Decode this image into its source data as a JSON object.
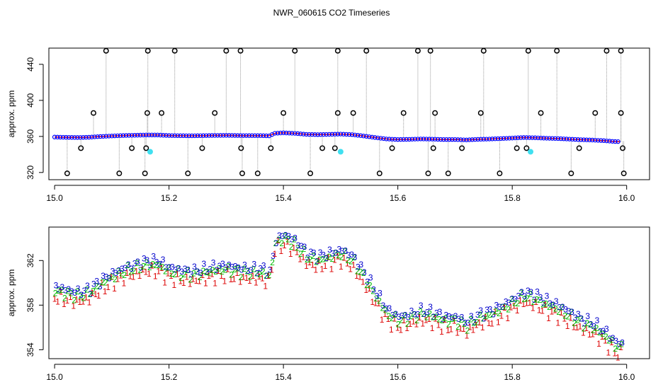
{
  "title": "NWR_060615  CO2 Timeseries",
  "colors": {
    "primary_line": "#ff0000",
    "primary_points": "#0000ff",
    "outlier": "#000000",
    "flag_cyan": "#40e0f0",
    "connector": "#999999",
    "code1": "#dd0000",
    "code2": "#00bb00",
    "code3": "#0000cc"
  },
  "chart_data": [
    {
      "type": "scatter",
      "name": "overview",
      "ylabel": "approx. ppm",
      "xlabel": "",
      "xlim": [
        14.99,
        16.04
      ],
      "ylim": [
        312,
        458
      ],
      "xticks": [
        15.0,
        15.2,
        15.4,
        15.6,
        15.8,
        16.0
      ],
      "xtick_labels": [
        "15.0",
        "15.2",
        "15.4",
        "15.6",
        "15.8",
        "16.0"
      ],
      "yticks": [
        320,
        360,
        400,
        440
      ],
      "ytick_labels": [
        "320",
        "360",
        "400",
        "440"
      ],
      "outliers_x": [
        15.09,
        15.163,
        15.21,
        15.3,
        15.325,
        15.42,
        15.495,
        15.545,
        15.635,
        15.657,
        15.75,
        15.828,
        15.878,
        15.965,
        15.99
      ],
      "outliers_y": [
        455,
        455,
        455,
        455,
        455,
        455,
        455,
        455,
        455,
        455,
        455,
        455,
        455,
        455,
        455
      ],
      "mid_outliers_x": [
        15.068,
        15.162,
        15.187,
        15.28,
        15.4,
        15.495,
        15.522,
        15.61,
        15.665,
        15.745,
        15.85,
        15.945,
        15.99
      ],
      "mid_outliers_y": [
        386,
        386,
        386,
        386,
        386,
        386,
        386,
        386,
        386,
        386,
        386,
        386,
        386
      ],
      "low_outliers_x": [
        15.022,
        15.113,
        15.158,
        15.233,
        15.328,
        15.355,
        15.447,
        15.568,
        15.653,
        15.688,
        15.778,
        15.903,
        15.995
      ],
      "low_outliers_y": [
        319,
        319,
        319,
        319,
        319,
        319,
        319,
        319,
        319,
        319,
        319,
        319,
        319
      ],
      "near_outliers_x": [
        15.046,
        15.135,
        15.16,
        15.258,
        15.326,
        15.378,
        15.468,
        15.49,
        15.59,
        15.662,
        15.712,
        15.808,
        15.825,
        15.917,
        15.993
      ],
      "near_outliers_y": [
        347,
        347,
        347,
        347,
        347,
        347,
        347,
        347,
        347,
        347,
        347,
        347,
        347,
        347,
        347
      ],
      "flag_x": [
        15.167,
        15.5,
        15.832
      ],
      "flag_y": [
        343,
        343,
        343
      ]
    },
    {
      "type": "scatter",
      "name": "detail",
      "ylabel": "approx. ppm",
      "xlabel": "",
      "xlim": [
        14.99,
        16.04
      ],
      "ylim": [
        353.2,
        365.0
      ],
      "xticks": [
        15.0,
        15.2,
        15.4,
        15.6,
        15.8,
        16.0
      ],
      "xtick_labels": [
        "15.0",
        "15.2",
        "15.4",
        "15.6",
        "15.8",
        "16.0"
      ],
      "yticks": [
        354,
        358,
        362
      ],
      "ytick_labels": [
        "354",
        "358",
        "362"
      ],
      "series_markers": [
        "1",
        "2",
        "3"
      ],
      "trend_x": [
        15.0,
        15.02,
        15.04,
        15.06,
        15.08,
        15.1,
        15.12,
        15.14,
        15.16,
        15.18,
        15.2,
        15.22,
        15.24,
        15.26,
        15.28,
        15.3,
        15.32,
        15.34,
        15.36,
        15.375,
        15.385,
        15.4,
        15.42,
        15.44,
        15.46,
        15.48,
        15.5,
        15.52,
        15.54,
        15.56,
        15.58,
        15.6,
        15.62,
        15.64,
        15.66,
        15.68,
        15.7,
        15.72,
        15.74,
        15.76,
        15.78,
        15.8,
        15.82,
        15.84,
        15.86,
        15.88,
        15.9,
        15.92,
        15.94,
        15.96,
        15.98,
        15.99
      ],
      "trend_y": [
        359.3,
        359.0,
        358.8,
        359.1,
        359.9,
        360.5,
        361.0,
        361.3,
        361.6,
        361.6,
        361.0,
        360.8,
        360.7,
        360.9,
        361.1,
        361.2,
        361.0,
        360.9,
        360.9,
        360.6,
        363.5,
        364.0,
        363.4,
        362.3,
        362.0,
        362.3,
        362.6,
        362.0,
        360.5,
        358.8,
        357.2,
        356.6,
        356.8,
        357.2,
        357.0,
        356.6,
        356.6,
        356.1,
        356.8,
        357.1,
        357.6,
        358.2,
        358.8,
        358.5,
        358.0,
        357.6,
        357.0,
        356.4,
        356.0,
        355.3,
        354.3,
        354.2
      ]
    }
  ]
}
